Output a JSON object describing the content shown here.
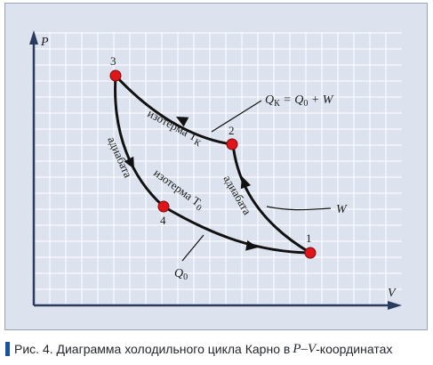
{
  "colors": {
    "background": "#dce3ef",
    "grid": "#ffffff",
    "curve": "#111111",
    "point": "#e0151a",
    "caption_bar": "#1e4f9a"
  },
  "axes": {
    "y_label": "P",
    "x_label": "V"
  },
  "points": [
    {
      "id": "1",
      "label": "1"
    },
    {
      "id": "2",
      "label": "2"
    },
    {
      "id": "3",
      "label": "3"
    },
    {
      "id": "4",
      "label": "4"
    }
  ],
  "curves": {
    "isotherm_k": {
      "label": "изотерма T",
      "sub": "К"
    },
    "isotherm_0": {
      "label": "изотерма T",
      "sub": "0"
    },
    "adiabat_left": {
      "label": "адиабата"
    },
    "adiabat_right": {
      "label": "адиабата"
    }
  },
  "annotations": {
    "qk": {
      "q": "Q",
      "sub_k": "К",
      "rest": " = Q",
      "sub_0": "0",
      "tail": " + W"
    },
    "w": {
      "label": "W"
    },
    "q0": {
      "q": "Q",
      "sub": "0"
    }
  },
  "caption": {
    "text": "Рис. 4. Диаграмма холодильного цикла Карно в",
    "pv": "P–V",
    "suffix": "-координатах"
  }
}
